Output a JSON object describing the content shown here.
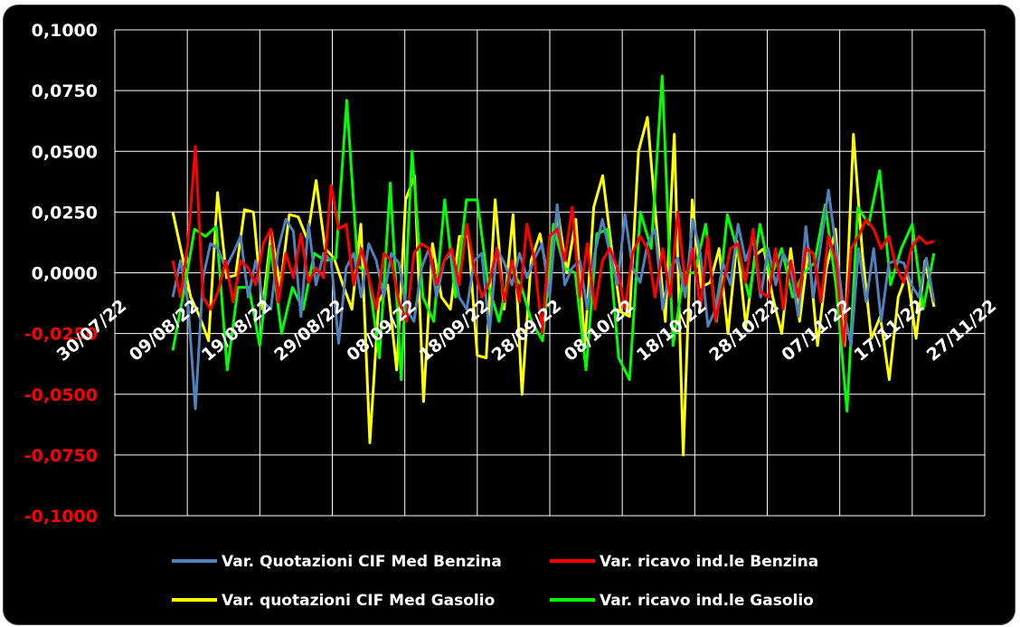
{
  "chart_data": {
    "type": "line",
    "title": "",
    "xlabel": "",
    "ylabel": "",
    "x_range": [
      "2022-07-30",
      "2022-11-27"
    ],
    "ylim": [
      -0.1,
      0.1
    ],
    "y_ticks": [
      "0,1000",
      "0,0750",
      "0,0500",
      "0,0250",
      "0,0000",
      "-0,0250",
      "-0,0500",
      "-0,0750",
      "-0,1000"
    ],
    "y_tick_values": [
      0.1,
      0.075,
      0.05,
      0.025,
      0,
      -0.025,
      -0.05,
      -0.075,
      -0.1
    ],
    "x_ticks": [
      "30/07/22",
      "09/08/22",
      "19/08/22",
      "29/08/22",
      "08/09/22",
      "18/09/22",
      "28/09/22",
      "08/10/22",
      "18/10/22",
      "28/10/22",
      "07/11/22",
      "17/11/22",
      "27/11/22"
    ],
    "grid": true,
    "background": "#000000",
    "legend_position": "bottom",
    "colors": {
      "positive_ticks": "#ffffff",
      "negative_ticks": "#ff0000",
      "grid": "#ffffff"
    },
    "series": [
      {
        "name": "Var. Quotazioni CIF Med Benzina",
        "color": "#4f81bd",
        "values": [
          -0.01,
          0.005,
          -0.012,
          -0.056,
          -0.002,
          0.012,
          0.01,
          0.002,
          0.008,
          0.015,
          -0.01,
          0.005,
          -0.012,
          -0.015,
          0.01,
          0.022,
          0.017,
          -0.018,
          0.02,
          -0.005,
          0.008,
          0.005,
          -0.029,
          0.002,
          0.008,
          -0.01,
          0.012,
          0.005,
          -0.01,
          0.008,
          0.004,
          -0.015,
          -0.02,
          0.002,
          0.01,
          -0.01,
          0.005,
          0.008,
          -0.01,
          -0.015,
          0.005,
          0.008,
          -0.025,
          0.01,
          0.004,
          -0.005,
          0.008,
          -0.002,
          0.006,
          0.012,
          -0.01,
          0.028,
          -0.005,
          0.002,
          0.005,
          -0.015,
          0.008,
          0.022,
          0.008,
          -0.005,
          0.024,
          0.002,
          -0.004,
          0.012,
          0.018,
          -0.015,
          0.002,
          0.006,
          -0.01,
          0.022,
          0.008,
          -0.022,
          -0.015,
          0.004,
          -0.005,
          0.02,
          0.005,
          0.014,
          -0.01,
          0.01,
          -0.005,
          0.008,
          0.002,
          -0.018,
          0.019,
          -0.01,
          0.012,
          0.034,
          0.01,
          -0.015,
          -0.03,
          0.01,
          -0.012,
          0.01,
          -0.02,
          0.004,
          0.005,
          0.004,
          -0.005,
          -0.01,
          0.006,
          -0.012
        ]
      },
      {
        "name": "Var. ricavo ind.le Benzina",
        "color": "#ff0000",
        "values": [
          0.005,
          -0.01,
          0.012,
          0.052,
          -0.01,
          -0.015,
          -0.008,
          0.005,
          -0.012,
          0.005,
          0.002,
          -0.005,
          0.012,
          0.018,
          -0.012,
          0.008,
          -0.002,
          0.016,
          -0.004,
          0.002,
          -0.002,
          0.036,
          0.018,
          0.02,
          -0.005,
          0.01,
          -0.002,
          -0.015,
          0.008,
          0.005,
          -0.012,
          -0.02,
          0.008,
          0.012,
          0.01,
          -0.005,
          0.005,
          0.01,
          -0.005,
          0.02,
          0.002,
          -0.01,
          -0.004,
          0.01,
          -0.012,
          0.005,
          -0.012,
          0.02,
          0.005,
          -0.025,
          0.015,
          0.018,
          0.005,
          0.027,
          -0.01,
          0.012,
          -0.015,
          0.005,
          0.01,
          0.002,
          -0.015,
          0.008,
          0.015,
          0.01,
          -0.01,
          0.01,
          -0.01,
          0.025,
          -0.005,
          0.01,
          -0.015,
          0.015,
          -0.02,
          -0.005,
          0.01,
          0.012,
          -0.004,
          0.018,
          -0.008,
          -0.01,
          0.01,
          -0.015,
          0.005,
          -0.01,
          0.01,
          0.008,
          -0.012,
          0.015,
          0.005,
          -0.03,
          0.01,
          0.015,
          0.022,
          0.018,
          0.01,
          0.015,
          0.002,
          -0.004,
          0.01,
          0.015,
          0.012,
          0.013
        ]
      },
      {
        "name": "Var. quotazioni CIF Med Gasolio",
        "color": "#ffff00",
        "values": [
          0.025,
          0.008,
          -0.01,
          -0.018,
          -0.028,
          0.033,
          -0.002,
          -0.001,
          0.026,
          0.025,
          -0.015,
          0.017,
          -0.006,
          0.024,
          0.023,
          0.014,
          0.038,
          0.01,
          0.006,
          -0.005,
          -0.015,
          0.02,
          -0.07,
          -0.012,
          -0.005,
          -0.04,
          0.03,
          0.04,
          -0.053,
          0.012,
          -0.01,
          -0.015,
          0.015,
          0.015,
          -0.034,
          -0.035,
          0.03,
          -0.015,
          0.024,
          -0.05,
          0.005,
          0.016,
          -0.005,
          0.025,
          0.0,
          0.022,
          -0.03,
          0.027,
          0.04,
          0.01,
          -0.016,
          -0.018,
          0.05,
          0.064,
          0.02,
          -0.02,
          0.057,
          -0.075,
          0.03,
          -0.006,
          -0.004,
          0.01,
          -0.025,
          0.013,
          -0.022,
          0.007,
          0.01,
          -0.01,
          -0.025,
          0.01,
          -0.02,
          0.01,
          -0.03,
          0.002,
          0.018,
          -0.03,
          0.057,
          0.008,
          -0.027,
          -0.018,
          -0.044,
          -0.01,
          0.0,
          -0.027,
          0.005,
          -0.014
        ]
      },
      {
        "name": "Var. ricavo ind.le Gasolio",
        "color": "#00ff00",
        "values": [
          -0.032,
          -0.008,
          0.018,
          0.015,
          0.019,
          -0.04,
          -0.006,
          -0.006,
          -0.03,
          0.011,
          -0.025,
          -0.006,
          -0.015,
          0.008,
          0.005,
          0.006,
          0.071,
          0.003,
          -0.001,
          -0.035,
          0.037,
          -0.044,
          0.05,
          -0.01,
          -0.02,
          0.03,
          -0.01,
          0.03,
          0.03,
          -0.005,
          -0.02,
          0.002,
          -0.005,
          -0.02,
          -0.028,
          0.02,
          0.002,
          0.0,
          -0.04,
          0.016,
          0.018,
          -0.035,
          -0.044,
          0.025,
          0.01,
          0.081,
          -0.03,
          0.0,
          0.0,
          0.02,
          -0.02,
          0.024,
          0.008,
          -0.01,
          0.02,
          -0.002,
          0.01,
          -0.01,
          0.0,
          0.004,
          0.028,
          -0.006,
          -0.057,
          0.027,
          0.02,
          0.042,
          -0.005,
          0.01,
          0.02,
          -0.015,
          0.008
        ]
      }
    ]
  }
}
